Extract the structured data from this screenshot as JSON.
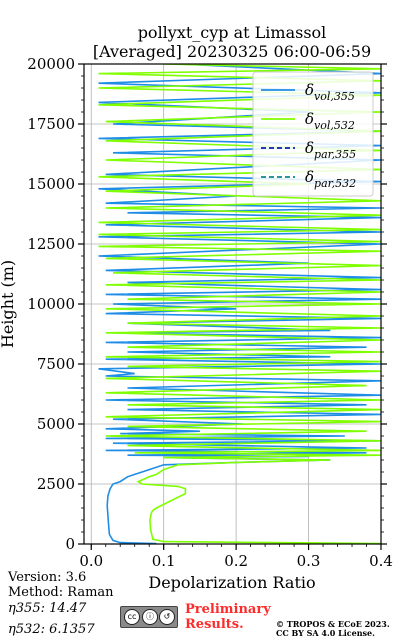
{
  "chart_data": {
    "type": "line",
    "title": "pollyxt_cyp at Limassol",
    "subtitle": "[Averaged] 20230325 06:00-06:59",
    "xlabel": "Depolarization Ratio",
    "ylabel": "Height (m)",
    "xlim": [
      -0.01,
      0.4
    ],
    "ylim": [
      0,
      20000
    ],
    "xticks": [
      0.0,
      0.1,
      0.2,
      0.3,
      0.4
    ],
    "xtick_labels": [
      "0.0",
      "0.1",
      "0.2",
      "0.3",
      "0.4"
    ],
    "yticks": [
      0,
      2500,
      5000,
      7500,
      10000,
      12500,
      15000,
      17500,
      20000
    ],
    "ytick_labels": [
      "0",
      "2500",
      "5000",
      "7500",
      "10000",
      "12500",
      "15000",
      "17500",
      "20000"
    ],
    "grid": true,
    "legend_position": "top-right",
    "series": [
      {
        "name": "δvol,355",
        "color": "#1f8de6",
        "style": "solid",
        "points": [
          [
            0.09,
            20
          ],
          [
            0.04,
            60
          ],
          [
            0.03,
            150
          ],
          [
            0.025,
            400
          ],
          [
            0.024,
            800
          ],
          [
            0.023,
            1200
          ],
          [
            0.022,
            1600
          ],
          [
            0.023,
            2000
          ],
          [
            0.026,
            2300
          ],
          [
            0.03,
            2500
          ],
          [
            0.04,
            2600
          ],
          [
            0.05,
            2800
          ],
          [
            0.06,
            2900
          ],
          [
            0.07,
            3000
          ],
          [
            0.08,
            3100
          ],
          [
            0.09,
            3200
          ],
          [
            0.1,
            3300
          ],
          [
            0.2,
            3400
          ],
          [
            0.33,
            3500
          ],
          [
            0.1,
            3600
          ],
          [
            0.3,
            3650
          ],
          [
            0.05,
            3700
          ],
          [
            0.38,
            3800
          ],
          [
            0.02,
            3900
          ],
          [
            0.38,
            4000
          ],
          [
            0.03,
            4200
          ],
          [
            0.4,
            4300
          ],
          [
            0.02,
            4400
          ],
          [
            0.35,
            4500
          ],
          [
            0.04,
            4600
          ],
          [
            0.15,
            4700
          ],
          [
            0.02,
            4800
          ],
          [
            0.21,
            5000
          ],
          [
            0.03,
            5200
          ],
          [
            0.4,
            5400
          ],
          [
            0.05,
            5600
          ],
          [
            0.38,
            5800
          ],
          [
            0.02,
            6000
          ],
          [
            0.4,
            6200
          ],
          [
            0.05,
            6500
          ],
          [
            0.4,
            6800
          ],
          [
            0.02,
            7000
          ],
          [
            0.06,
            7100
          ],
          [
            0.01,
            7300
          ],
          [
            0.4,
            7500
          ],
          [
            0.02,
            7700
          ],
          [
            0.33,
            7800
          ],
          [
            0.05,
            8000
          ],
          [
            0.38,
            8200
          ],
          [
            0.02,
            8400
          ],
          [
            0.4,
            8600
          ],
          [
            0.03,
            8800
          ],
          [
            0.33,
            8900
          ],
          [
            0.05,
            9200
          ],
          [
            0.4,
            9400
          ],
          [
            0.02,
            9600
          ],
          [
            0.2,
            9800
          ],
          [
            0.03,
            10000
          ],
          [
            0.4,
            10200
          ],
          [
            0.02,
            10400
          ],
          [
            0.4,
            10600
          ],
          [
            0.05,
            10900
          ],
          [
            0.4,
            11100
          ],
          [
            0.02,
            11400
          ],
          [
            0.3,
            11700
          ],
          [
            0.01,
            12000
          ],
          [
            0.4,
            12500
          ],
          [
            0.01,
            12800
          ],
          [
            0.4,
            13000
          ],
          [
            0.02,
            13300
          ],
          [
            0.4,
            13600
          ],
          [
            0.05,
            13800
          ],
          [
            0.4,
            14000
          ],
          [
            0.02,
            14200
          ],
          [
            0.2,
            14500
          ],
          [
            0.01,
            14800
          ],
          [
            0.4,
            15100
          ],
          [
            0.02,
            15400
          ],
          [
            0.4,
            16000
          ],
          [
            0.03,
            16300
          ],
          [
            0.4,
            16600
          ],
          [
            0.01,
            16900
          ],
          [
            0.4,
            17200
          ],
          [
            0.03,
            17500
          ],
          [
            0.3,
            18000
          ],
          [
            0.01,
            18400
          ],
          [
            0.4,
            18800
          ],
          [
            0.01,
            19200
          ],
          [
            0.4,
            19600
          ],
          [
            0.12,
            20000
          ]
        ]
      },
      {
        "name": "δvol,532",
        "color": "#7fff00",
        "style": "solid",
        "points": [
          [
            0.4,
            20
          ],
          [
            0.25,
            60
          ],
          [
            0.1,
            100
          ],
          [
            0.085,
            200
          ],
          [
            0.082,
            600
          ],
          [
            0.081,
            1000
          ],
          [
            0.083,
            1300
          ],
          [
            0.085,
            1400
          ],
          [
            0.09,
            1500
          ],
          [
            0.13,
            2100
          ],
          [
            0.13,
            2300
          ],
          [
            0.12,
            2400
          ],
          [
            0.07,
            2500
          ],
          [
            0.065,
            2600
          ],
          [
            0.08,
            2800
          ],
          [
            0.09,
            2900
          ],
          [
            0.1,
            3100
          ],
          [
            0.12,
            3300
          ],
          [
            0.2,
            3400
          ],
          [
            0.33,
            3500
          ],
          [
            0.1,
            3600
          ],
          [
            0.4,
            3700
          ],
          [
            0.06,
            3800
          ],
          [
            0.4,
            3900
          ],
          [
            0.05,
            4100
          ],
          [
            0.4,
            4300
          ],
          [
            0.02,
            4500
          ],
          [
            0.38,
            4700
          ],
          [
            0.05,
            4900
          ],
          [
            0.4,
            5100
          ],
          [
            0.02,
            5300
          ],
          [
            0.4,
            5600
          ],
          [
            0.05,
            5800
          ],
          [
            0.4,
            6000
          ],
          [
            0.02,
            6300
          ],
          [
            0.38,
            6600
          ],
          [
            0.02,
            6900
          ],
          [
            0.4,
            7200
          ],
          [
            0.05,
            7400
          ],
          [
            0.4,
            7600
          ],
          [
            0.02,
            7800
          ],
          [
            0.4,
            8000
          ],
          [
            0.05,
            8200
          ],
          [
            0.4,
            8500
          ],
          [
            0.02,
            8800
          ],
          [
            0.4,
            9000
          ],
          [
            0.05,
            9200
          ],
          [
            0.4,
            9500
          ],
          [
            0.02,
            9800
          ],
          [
            0.4,
            10000
          ],
          [
            0.05,
            10200
          ],
          [
            0.4,
            10500
          ],
          [
            0.02,
            10800
          ],
          [
            0.4,
            11000
          ],
          [
            0.03,
            11300
          ],
          [
            0.4,
            11600
          ],
          [
            0.02,
            11900
          ],
          [
            0.4,
            12200
          ],
          [
            0.01,
            12400
          ],
          [
            0.4,
            12600
          ],
          [
            0.01,
            12900
          ],
          [
            0.4,
            13100
          ],
          [
            0.01,
            13400
          ],
          [
            0.4,
            13700
          ],
          [
            0.02,
            14000
          ],
          [
            0.4,
            14300
          ],
          [
            0.02,
            14700
          ],
          [
            0.3,
            15000
          ],
          [
            0.01,
            15300
          ],
          [
            0.4,
            15600
          ],
          [
            0.02,
            16000
          ],
          [
            0.4,
            16400
          ],
          [
            0.02,
            16800
          ],
          [
            0.4,
            17200
          ],
          [
            0.02,
            17600
          ],
          [
            0.4,
            18000
          ],
          [
            0.01,
            18300
          ],
          [
            0.4,
            18700
          ],
          [
            0.01,
            19000
          ],
          [
            0.4,
            19300
          ],
          [
            0.01,
            19600
          ],
          [
            0.4,
            19800
          ],
          [
            0.1,
            20000
          ]
        ]
      },
      {
        "name": "δpar,355",
        "color": "#0b1fa8",
        "style": "dashed",
        "points": []
      },
      {
        "name": "δpar,532",
        "color": "#0b8a8a",
        "style": "dashed",
        "points": []
      }
    ]
  },
  "footer": {
    "version": "Version: 3.6",
    "method": "Method: Raman",
    "eta355": "η355:  14.47",
    "eta532": "η532: 6.1357",
    "preliminary_line1": "Preliminary",
    "preliminary_line2": "Results.",
    "copyright_line1": "© TROPOS & ECoE 2023.",
    "copyright_line2": "CC BY SA 4.0 License.",
    "license_badge": "cc"
  }
}
